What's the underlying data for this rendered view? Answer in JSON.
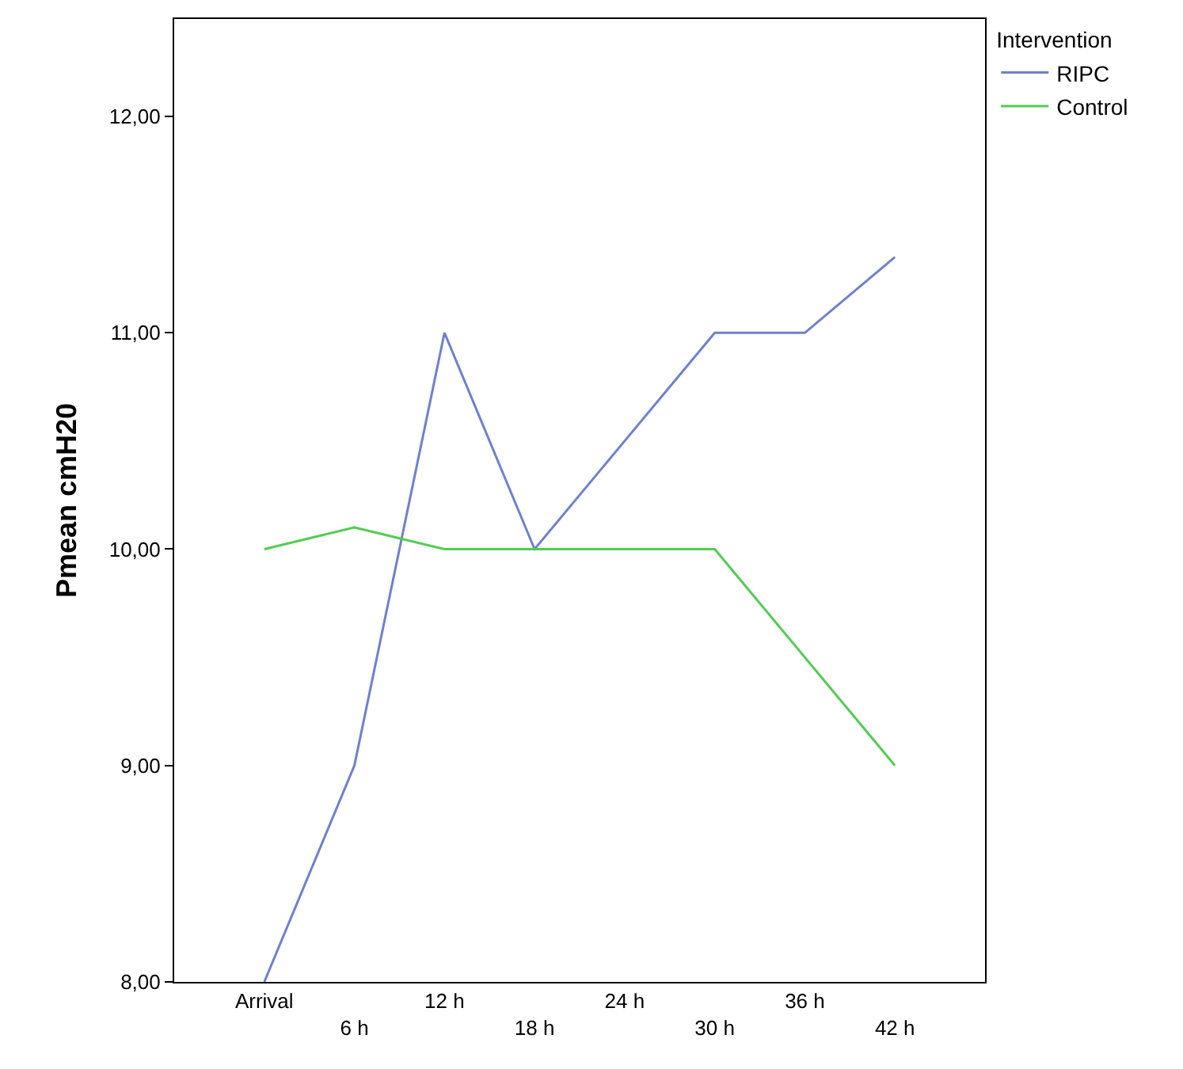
{
  "chart_data": {
    "type": "line",
    "ylabel": "Pmean cmH20",
    "legend_title": "Intervention",
    "categories": [
      "Arrival",
      "6 h",
      "12 h",
      "18 h",
      "24 h",
      "30 h",
      "36 h",
      "42 h"
    ],
    "series": [
      {
        "name": "RIPC",
        "color": "#6f7fd0",
        "values": [
          8.0,
          9.0,
          11.0,
          10.0,
          10.5,
          11.0,
          11.0,
          11.35
        ]
      },
      {
        "name": "Control",
        "color": "#52cc52",
        "values": [
          10.0,
          10.1,
          10.0,
          10.0,
          10.0,
          10.0,
          9.5,
          9.0
        ]
      }
    ],
    "ylim": [
      8,
      12.45
    ],
    "yticks": [
      {
        "value": 8,
        "label": "8,00"
      },
      {
        "value": 9,
        "label": "9,00"
      },
      {
        "value": 10,
        "label": "10,00"
      },
      {
        "value": 11,
        "label": "11,00"
      },
      {
        "value": 12,
        "label": "12,00"
      }
    ],
    "legend": "top right",
    "marker": "none",
    "line_style": "solid"
  }
}
